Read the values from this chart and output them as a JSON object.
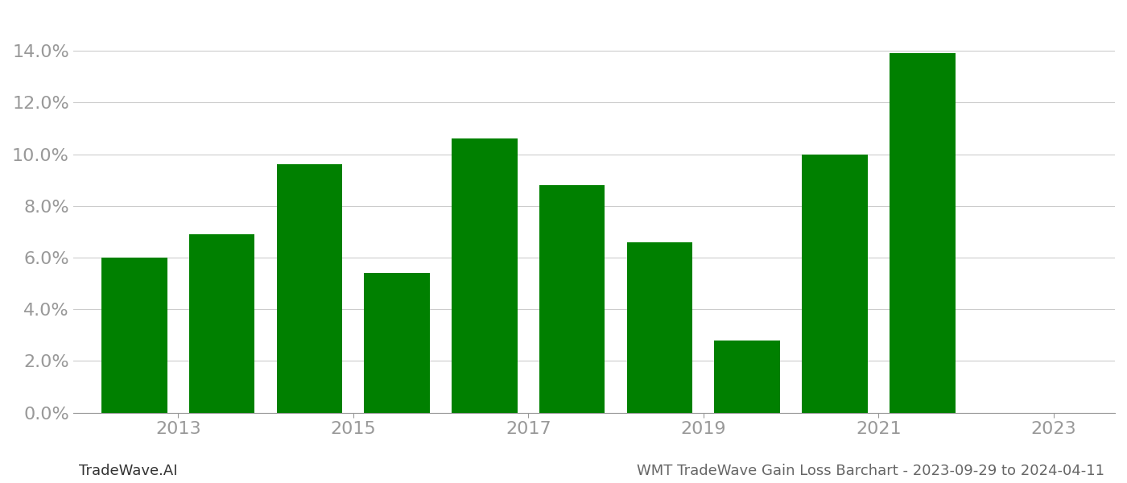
{
  "bar_positions": [
    1,
    2,
    3,
    4,
    5,
    6,
    7,
    8,
    9,
    10,
    11
  ],
  "values": [
    0.06,
    0.069,
    0.096,
    0.054,
    0.106,
    0.088,
    0.066,
    0.028,
    0.1,
    0.139,
    0.0
  ],
  "xtick_positions": [
    1.5,
    3.5,
    5.5,
    7.5,
    9.5,
    11.5
  ],
  "xtick_labels": [
    "2013",
    "2015",
    "2017",
    "2019",
    "2021",
    "2023"
  ],
  "bar_color": "#008000",
  "background_color": "#ffffff",
  "grid_color": "#cccccc",
  "axis_label_color": "#999999",
  "ylim": [
    0,
    0.155
  ],
  "yticks": [
    0.0,
    0.02,
    0.04,
    0.06,
    0.08,
    0.1,
    0.12,
    0.14
  ],
  "xlim": [
    0.3,
    12.2
  ],
  "bar_width": 0.75,
  "tick_fontsize": 16,
  "footer_left": "TradeWave.AI",
  "footer_right": "WMT TradeWave Gain Loss Barchart - 2023-09-29 to 2024-04-11",
  "footer_fontsize": 13,
  "footer_left_color": "#333333",
  "footer_right_color": "#666666"
}
